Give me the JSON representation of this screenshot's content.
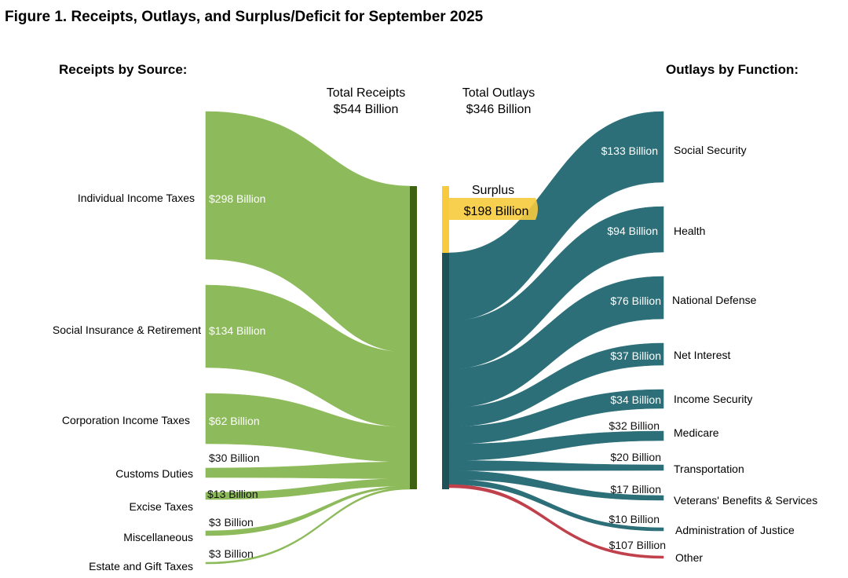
{
  "title": "Figure 1. Receipts, Outlays, and Surplus/Deficit for September 2025",
  "receipts_heading": "Receipts by Source:",
  "outlays_heading": "Outlays by Function:",
  "total_receipts": {
    "label": "Total Receipts",
    "value": "$544 Billion"
  },
  "total_outlays": {
    "label": "Total Outlays",
    "value": "$346 Billion"
  },
  "surplus": {
    "label": "Surplus",
    "value": "$198 Billion"
  },
  "colors": {
    "receipts": "#8dba5a",
    "receipts_bar": "#3e6212",
    "outlays": "#2d6f78",
    "outlays_bar": "#1e5259",
    "surplus": "#f7cb3d",
    "other": "#c0404b"
  },
  "receipts": [
    {
      "name": "Individual Income Taxes",
      "value": 298,
      "value_label": "$298 Billion"
    },
    {
      "name": "Social Insurance & Retirement",
      "value": 134,
      "value_label": "$134 Billion"
    },
    {
      "name": "Corporation Income Taxes",
      "value": 62,
      "value_label": "$62 Billion"
    },
    {
      "name": "Customs Duties",
      "value": 30,
      "value_label": "$30 Billion"
    },
    {
      "name": "Excise Taxes",
      "value": 13,
      "value_label": "$13 Billion"
    },
    {
      "name": "Miscellaneous",
      "value": 3,
      "value_label": "$3 Billion"
    },
    {
      "name": "Estate and Gift Taxes",
      "value": 3,
      "value_label": "$3 Billion"
    }
  ],
  "outlays": [
    {
      "name": "Social Security",
      "value": 133,
      "value_label": "$133 Billion"
    },
    {
      "name": "Health",
      "value": 94,
      "value_label": "$94 Billion"
    },
    {
      "name": "National Defense",
      "value": 76,
      "value_label": "$76 Billion"
    },
    {
      "name": "Net Interest",
      "value": 37,
      "value_label": "$37 Billion"
    },
    {
      "name": "Income Security",
      "value": 34,
      "value_label": "$34 Billion"
    },
    {
      "name": "Medicare",
      "value": 32,
      "value_label": "$32 Billion"
    },
    {
      "name": "Transportation",
      "value": 20,
      "value_label": "$20 Billion"
    },
    {
      "name": "Veterans' Benefits & Services",
      "value": 17,
      "value_label": "$17 Billion"
    },
    {
      "name": "Administration of Justice",
      "value": 10,
      "value_label": "$10 Billion"
    },
    {
      "name": "Other",
      "value": -107,
      "value_label": "$107 Billion"
    }
  ]
}
